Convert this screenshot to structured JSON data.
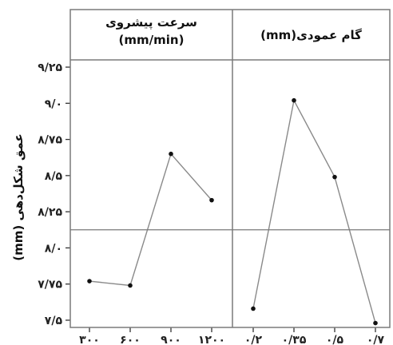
{
  "chart_data": {
    "type": "line",
    "ylabel": "عمق شکل‌دهی (mm)",
    "ylim": [
      7.45,
      9.3
    ],
    "yticks": [
      7.5,
      7.75,
      8.0,
      8.25,
      8.5,
      8.75,
      9.0,
      9.25
    ],
    "ytick_labels": [
      "۷/۵",
      "۷/۷۵",
      "۸/۰",
      "۸/۲۵",
      "۸/۵",
      "۸/۷۵",
      "۹/۰",
      "۹/۲۵"
    ],
    "reference_line": 8.125,
    "grid": false,
    "panels": [
      {
        "title_lines": [
          "سرعت پیشروی",
          "(mm/min)"
        ],
        "categories": [
          300,
          600,
          900,
          1200
        ],
        "category_labels": [
          "۳۰۰",
          "۶۰۰",
          "۹۰۰",
          "۱۲۰۰"
        ],
        "values": [
          7.77,
          7.74,
          8.65,
          8.33
        ]
      },
      {
        "title_lines": [
          "گام عمودی(mm)"
        ],
        "categories": [
          0.2,
          0.35,
          0.5,
          0.7
        ],
        "category_labels": [
          "۰/۲",
          "۰/۳۵",
          "۰/۵",
          "۰/۷"
        ],
        "values": [
          7.58,
          9.02,
          8.49,
          7.48
        ]
      }
    ]
  }
}
